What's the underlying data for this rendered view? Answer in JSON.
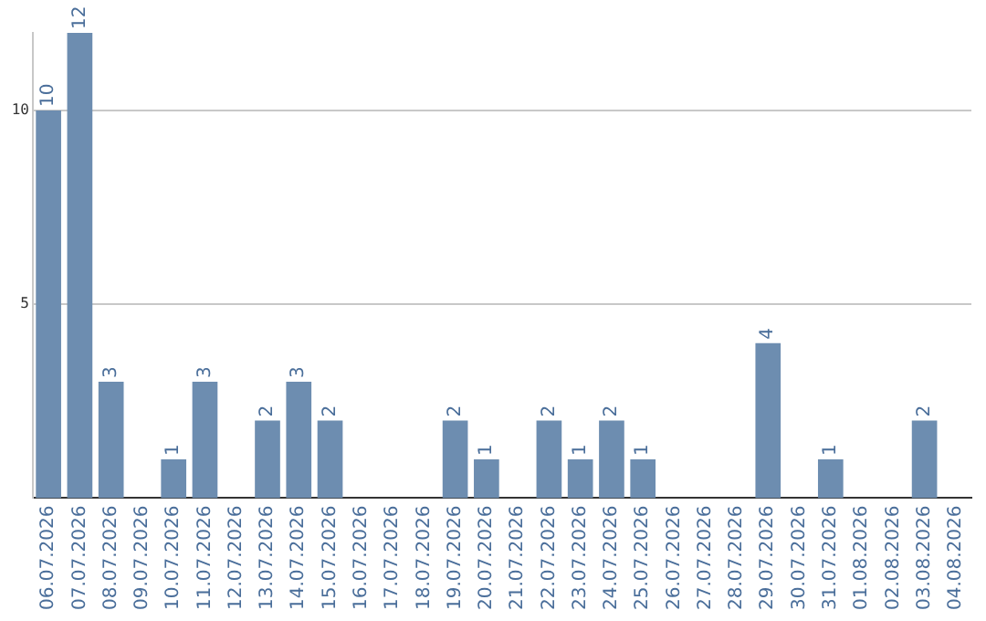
{
  "chart_data": {
    "type": "bar",
    "categories": [
      "06.07.2026",
      "07.07.2026",
      "08.07.2026",
      "09.07.2026",
      "10.07.2026",
      "11.07.2026",
      "12.07.2026",
      "13.07.2026",
      "14.07.2026",
      "15.07.2026",
      "16.07.2026",
      "17.07.2026",
      "18.07.2026",
      "19.07.2026",
      "20.07.2026",
      "21.07.2026",
      "22.07.2026",
      "23.07.2026",
      "24.07.2026",
      "25.07.2026",
      "26.07.2026",
      "27.07.2026",
      "28.07.2026",
      "29.07.2026",
      "30.07.2026",
      "31.07.2026",
      "01.08.2026",
      "02.08.2026",
      "03.08.2026",
      "04.08.2026"
    ],
    "values": [
      10,
      12,
      3,
      0,
      1,
      3,
      0,
      2,
      3,
      2,
      0,
      0,
      0,
      2,
      1,
      0,
      2,
      1,
      2,
      1,
      0,
      0,
      0,
      4,
      0,
      1,
      0,
      0,
      2,
      0
    ],
    "value_labels": [
      "10",
      "12",
      "3",
      null,
      "1",
      "3",
      null,
      "2",
      "3",
      "2",
      null,
      null,
      null,
      "2",
      "1",
      null,
      "2",
      "1",
      "2",
      "1",
      null,
      null,
      null,
      "4",
      null,
      "1",
      null,
      null,
      "2",
      null
    ],
    "color": "#6d8db0",
    "ylim": [
      0,
      12
    ],
    "yticks": [
      5,
      10
    ],
    "grid": "y",
    "legend": false
  }
}
